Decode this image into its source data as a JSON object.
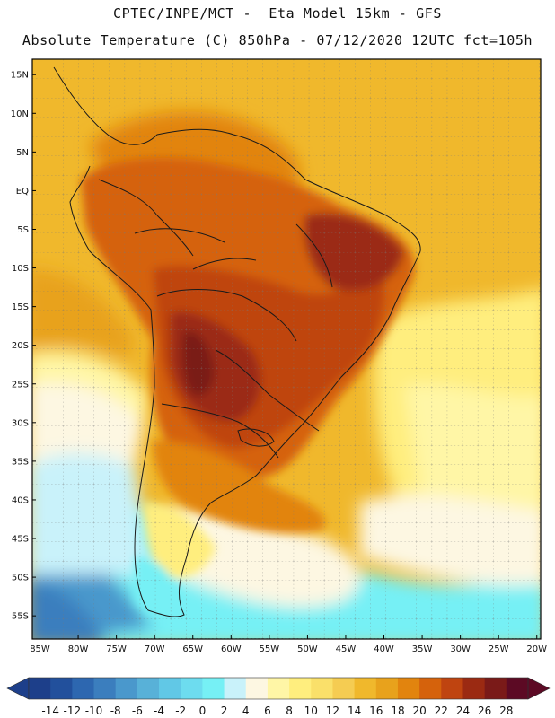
{
  "header": {
    "line1": "CPTEC/INPE/MCT -  Eta Model 15km - GFS",
    "line2": "Absolute Temperature (C) 850hPa - 07/12/2020 12UTC fct=105h"
  },
  "map": {
    "lat_labels": [
      "15N",
      "10N",
      "5N",
      "EQ",
      "5S",
      "10S",
      "15S",
      "20S",
      "25S",
      "30S",
      "35S",
      "40S",
      "45S",
      "50S",
      "55S"
    ],
    "lat_values": [
      15,
      10,
      5,
      0,
      -5,
      -10,
      -15,
      -20,
      -25,
      -30,
      -35,
      -40,
      -45,
      -50,
      -55
    ],
    "lon_labels": [
      "85W",
      "80W",
      "75W",
      "70W",
      "65W",
      "60W",
      "55W",
      "50W",
      "45W",
      "40W",
      "35W",
      "30W",
      "25W",
      "20W"
    ],
    "lon_values": [
      -85,
      -80,
      -75,
      -70,
      -65,
      -60,
      -55,
      -50,
      -45,
      -40,
      -35,
      -30,
      -25,
      -20
    ],
    "lat_range": [
      -58,
      17
    ],
    "lon_range": [
      -86,
      -19.5
    ]
  },
  "colorbar": {
    "labels": [
      "-14",
      "-12",
      "-10",
      "-8",
      "-6",
      "-4",
      "-2",
      "0",
      "2",
      "4",
      "6",
      "8",
      "10",
      "12",
      "14",
      "16",
      "18",
      "20",
      "22",
      "24",
      "26",
      "28"
    ],
    "colors": [
      "#1d3f8a",
      "#22509c",
      "#2d67b0",
      "#3b7ebe",
      "#4a98cc",
      "#58b1d8",
      "#61c8e6",
      "#6ddcef",
      "#76f0f5",
      "#c9f2fa",
      "#fdf7e2",
      "#fff6a6",
      "#ffee7e",
      "#fae06a",
      "#f5cc52",
      "#f0b82c",
      "#e8a21c",
      "#e2840e",
      "#d5620c",
      "#bf4410",
      "#9b2a12",
      "#7a1a18",
      "#5c0a24"
    ],
    "low_color": "#1d3f8a",
    "high_color": "#5c0a24"
  }
}
